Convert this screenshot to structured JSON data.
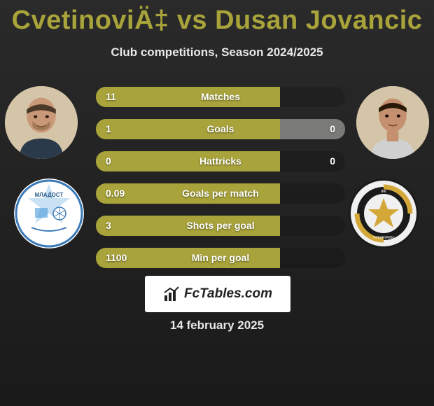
{
  "title": "CvetinoviÄ‡ vs Dusan Jovancic",
  "subtitle": "Club competitions, Season 2024/2025",
  "date": "14 february 2025",
  "badge_text": "FcTables.com",
  "colors": {
    "olive": "#a8a33a",
    "olive_light": "#b5b04f",
    "gray_fill": "#7a7a78",
    "background_dark": "#1a1a1a",
    "white": "#ffffff"
  },
  "stats": [
    {
      "label": "Matches",
      "left_val": "11",
      "right_val": "",
      "left_pct": 74,
      "right_pct": 0,
      "left_color": "#a8a33a",
      "right_color": "#7a7a78"
    },
    {
      "label": "Goals",
      "left_val": "1",
      "right_val": "0",
      "left_pct": 74,
      "right_pct": 26,
      "left_color": "#a8a33a",
      "right_color": "#7a7a78"
    },
    {
      "label": "Hattricks",
      "left_val": "0",
      "right_val": "0",
      "left_pct": 74,
      "right_pct": 0,
      "left_color": "#a8a33a",
      "right_color": "#7a7a78"
    },
    {
      "label": "Goals per match",
      "left_val": "0.09",
      "right_val": "",
      "left_pct": 74,
      "right_pct": 0,
      "left_color": "#a8a33a",
      "right_color": "#7a7a78"
    },
    {
      "label": "Shots per goal",
      "left_val": "3",
      "right_val": "",
      "left_pct": 74,
      "right_pct": 0,
      "left_color": "#a8a33a",
      "right_color": "#7a7a78"
    },
    {
      "label": "Min per goal",
      "left_val": "1100",
      "right_val": "",
      "left_pct": 74,
      "right_pct": 0,
      "left_color": "#a8a33a",
      "right_color": "#7a7a78"
    }
  ]
}
